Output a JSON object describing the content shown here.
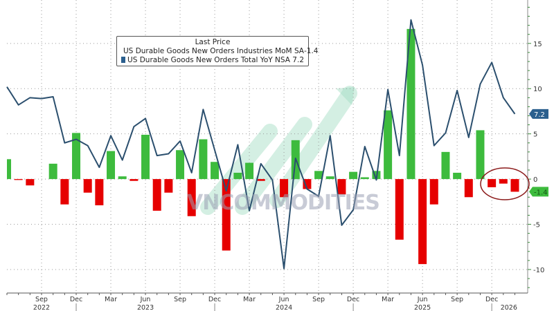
{
  "chart_data": {
    "type": "bar+line",
    "legend": {
      "header": "Last Price",
      "placement": "top-left",
      "entries": [
        {
          "name": "US Durable Goods New Orders Industries MoM SA",
          "last": "-1.4",
          "color": "#3dbb3d"
        },
        {
          "name": "US Durable Goods New Orders Total YoY NSA",
          "last": "7.2",
          "color": "#2b5f8e"
        }
      ]
    },
    "x": [
      "2022-06",
      "2022-07",
      "2022-08",
      "2022-09",
      "2022-10",
      "2022-11",
      "2022-12",
      "2023-01",
      "2023-02",
      "2023-03",
      "2023-04",
      "2023-05",
      "2023-06",
      "2023-07",
      "2023-08",
      "2023-09",
      "2023-10",
      "2023-11",
      "2023-12",
      "2024-01",
      "2024-02",
      "2024-03",
      "2024-04",
      "2024-05",
      "2024-06",
      "2024-07",
      "2024-08",
      "2024-09",
      "2024-10",
      "2024-11",
      "2024-12",
      "2025-01",
      "2025-02",
      "2025-03",
      "2025-04",
      "2025-05",
      "2025-06",
      "2025-07",
      "2025-08",
      "2025-09",
      "2025-10",
      "2025-11",
      "2025-12",
      "2026-01",
      "2026-02"
    ],
    "series": [
      {
        "name": "US Durable Goods New Orders Industries MoM SA",
        "type": "bar",
        "positive_color": "#3dbb3d",
        "negative_color": "#e60000",
        "values": [
          2.2,
          -0.1,
          -0.7,
          0.0,
          1.7,
          -2.8,
          5.1,
          -1.5,
          -2.9,
          3.1,
          0.3,
          -0.2,
          4.9,
          -3.5,
          -1.5,
          3.2,
          -4.1,
          4.4,
          1.9,
          -7.9,
          0.7,
          1.8,
          -0.2,
          0.0,
          -2.0,
          4.3,
          -1.1,
          0.9,
          0.3,
          -1.7,
          0.8,
          0.2,
          0.9,
          7.6,
          -6.7,
          16.6,
          -9.4,
          -2.8,
          3.0,
          0.7,
          -2.0,
          5.4,
          -0.9,
          -0.5,
          -1.4
        ]
      },
      {
        "name": "US Durable Goods New Orders Total YoY NSA",
        "type": "line",
        "color": "#2b4f6e",
        "values": [
          10.2,
          8.2,
          9.0,
          8.9,
          9.1,
          4.0,
          4.4,
          3.7,
          1.3,
          4.8,
          2.1,
          5.8,
          6.7,
          2.6,
          2.8,
          4.2,
          0.7,
          7.7,
          3.2,
          -1.3,
          3.8,
          -3.5,
          1.7,
          -0.1,
          -9.9,
          2.3,
          -1.1,
          -1.9,
          4.8,
          -5.1,
          -3.4,
          3.6,
          -0.1,
          9.9,
          2.6,
          17.6,
          12.6,
          3.7,
          5.1,
          9.8,
          4.6,
          10.5,
          12.9,
          9.0,
          7.2
        ]
      }
    ],
    "ylim": [
      -12.6,
      19.8
    ],
    "y_axis_side": "right",
    "y_ticks": [
      {
        "value": 15,
        "label": "15"
      },
      {
        "value": 10,
        "label": "10"
      },
      {
        "value": 5,
        "label": "5"
      },
      {
        "value": 0,
        "label": "0"
      },
      {
        "value": -5,
        "label": "-5"
      },
      {
        "value": -10,
        "label": "-10"
      }
    ],
    "x_ticks": [
      {
        "date": "2022-09",
        "label": "Sep"
      },
      {
        "date": "2022-12",
        "label": "Dec"
      },
      {
        "date": "2023-03",
        "label": "Mar"
      },
      {
        "date": "2023-06",
        "label": "Jun"
      },
      {
        "date": "2023-09",
        "label": "Sep"
      },
      {
        "date": "2023-12",
        "label": "Dec"
      },
      {
        "date": "2024-03",
        "label": "Mar"
      },
      {
        "date": "2024-06",
        "label": "Jun"
      },
      {
        "date": "2024-09",
        "label": "Sep"
      },
      {
        "date": "2024-12",
        "label": "Dec"
      },
      {
        "date": "2025-03",
        "label": "Mar"
      },
      {
        "date": "2025-06",
        "label": "Jun"
      },
      {
        "date": "2025-09",
        "label": "Sep"
      },
      {
        "date": "2025-12",
        "label": "Dec"
      }
    ],
    "year_labels": [
      {
        "date": "2022-09",
        "label": "2022"
      },
      {
        "date": "2023-06",
        "label": "2023"
      },
      {
        "date": "2024-06",
        "label": "2024"
      },
      {
        "date": "2025-06",
        "label": "2025"
      },
      {
        "date": "2026-01",
        "label": "2026"
      }
    ],
    "value_tags": [
      {
        "series": 1,
        "label": "7.2",
        "color": "#2b5f8e"
      },
      {
        "series": 0,
        "label": "-1.4",
        "color": "#3dbb3d"
      }
    ],
    "grid": true,
    "annotation": {
      "type": "circle",
      "around": [
        "2025-12",
        "2026-02"
      ],
      "color": "#8b1a1a"
    }
  },
  "watermark": {
    "text": "VNCOMMODITIES"
  }
}
